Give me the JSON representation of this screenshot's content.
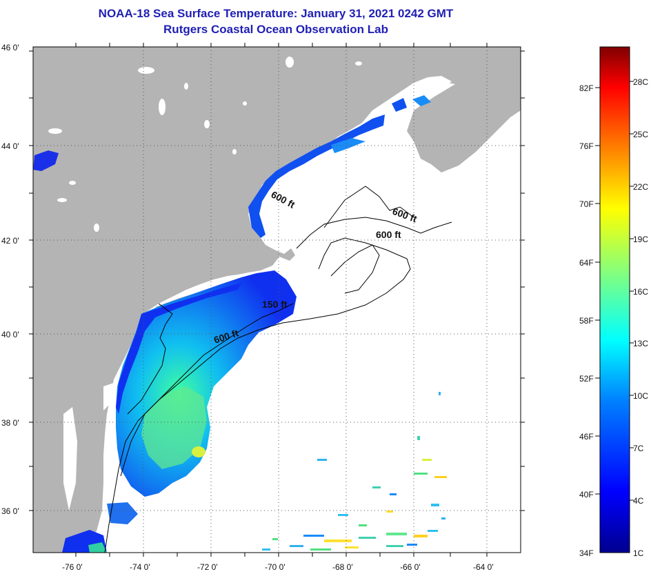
{
  "title": {
    "line1": "NOAA-18 Sea Surface Temperature:  January 31, 2021 0242 GMT",
    "line2": "Rutgers Coastal Ocean Observation Lab"
  },
  "map": {
    "lat_labels": [
      "46 0'",
      "44 0'",
      "42 0'",
      "40 0'",
      "38 0'",
      "36 0'"
    ],
    "lon_labels": [
      "-76 0'",
      "-74 0'",
      "-72 0'",
      "-70 0'",
      "-68 0'",
      "-66 0'",
      "-64 0'"
    ],
    "contour_labels": [
      "600 ft",
      "600 ft",
      "600 ft",
      "150 ft",
      "600 ft"
    ],
    "land_color": "#b4b4b4",
    "ocean_color": "#ffffff"
  },
  "colorbar": {
    "f_labels": [
      "82F",
      "76F",
      "70F",
      "64F",
      "58F",
      "52F",
      "46F",
      "40F",
      "34F"
    ],
    "c_labels": [
      "28C",
      "25C",
      "22C",
      "19C",
      "16C",
      "13C",
      "10C",
      "7C",
      "4C",
      "1C"
    ],
    "colors": [
      "#00008f",
      "#0000ff",
      "#0080ff",
      "#00ffff",
      "#80ff80",
      "#ffff00",
      "#ff8000",
      "#ff0000",
      "#800000"
    ]
  }
}
